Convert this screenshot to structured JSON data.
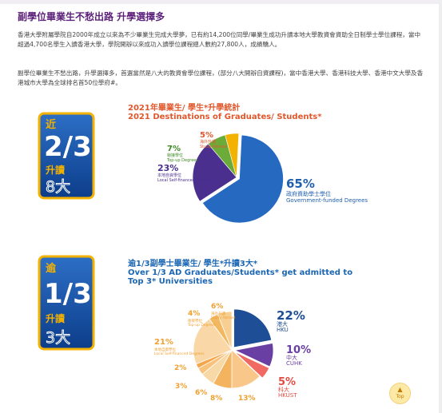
{
  "heading": "副學位畢業生不愁出路 升學選擇多",
  "paragraph1": "香港大學附屬學院自2000年成立以來為不少畢業生完成大學夢，已有約14,200位同學/畢業生成功升讀本地大學教資會資助全日制學士學位課程，當中超過4,700名學生入讀香港大學，學院開辦以來成功入讀學位課程總人數約27,800人，成績驕人。",
  "paragraph2": "副學位畢業生不愁出路，升學選擇多，首選當然是八大的教資會學位課程，(部分八大開辦自資課程)，當中香港大學、香港科技大學、香港中文大學及香港城市大學為全球排名首50位學府#。",
  "badge1": {
    "line1": "近",
    "big": "2/3",
    "line3": "升讀",
    "line4": "8大"
  },
  "badge2": {
    "line1": "逾",
    "big": "1/3",
    "line3": "升讀",
    "line4": "3大"
  },
  "chart1": {
    "title_zh": "2021年畢業生/ 學生*升學統計",
    "title_en": "2021 Destinations of Graduates/ Students*"
  },
  "chart2": {
    "title_zh": "逾1/3副學士畢業生/ 學生*升讀3大*",
    "title_en_1": "Over 1/3 AD Graduates/Students* get admitted to",
    "title_en_2": "Top 3* Universities"
  },
  "top_button": {
    "label": "Top",
    "arrow": "▲"
  },
  "colors": {
    "purple": "#5c1f7a",
    "blue": "#1f5fb0",
    "orange": "#e0572c",
    "gold": "#f4b200"
  },
  "chart_data": [
    {
      "type": "pie",
      "slices": [
        {
          "value": 65,
          "pct": "65%",
          "zh": "政府資助學士學位",
          "en": "Government-funded Degrees"
        },
        {
          "value": 23,
          "pct": "23%",
          "zh": "本地自資學位",
          "en": "Local Self-financed Degrees"
        },
        {
          "value": 7,
          "pct": "7%",
          "zh": "銜接學位",
          "en": "Top-up Degrees"
        },
        {
          "value": 5,
          "pct": "5%",
          "zh": "海外升讀",
          "en": "Study Abroad"
        }
      ]
    },
    {
      "type": "pie",
      "slices": [
        {
          "value": 22,
          "pct": "22%",
          "zh": "港大",
          "en": "HKU"
        },
        {
          "value": 10,
          "pct": "10%",
          "zh": "中大",
          "en": "CUHK"
        },
        {
          "value": 5,
          "pct": "5%",
          "zh": "科大",
          "en": "HKUST"
        },
        {
          "value": 13,
          "pct": "13%",
          "zh": "",
          "en": ""
        },
        {
          "value": 8,
          "pct": "8%",
          "zh": "",
          "en": ""
        },
        {
          "value": 6,
          "pct": "6%",
          "zh": "",
          "en": ""
        },
        {
          "value": 3,
          "pct": "3%",
          "zh": "",
          "en": ""
        },
        {
          "value": 2,
          "pct": "2%",
          "zh": "",
          "en": ""
        },
        {
          "value": 21,
          "pct": "21%",
          "zh": "本地自資學位",
          "en": "Local Self-financed Degrees"
        },
        {
          "value": 4,
          "pct": "4%",
          "zh": "銜接學位",
          "en": "Top-up Degrees"
        },
        {
          "value": 6,
          "pct": "6%",
          "zh": "海外升讀",
          "en": "Study Abroad"
        }
      ]
    }
  ]
}
